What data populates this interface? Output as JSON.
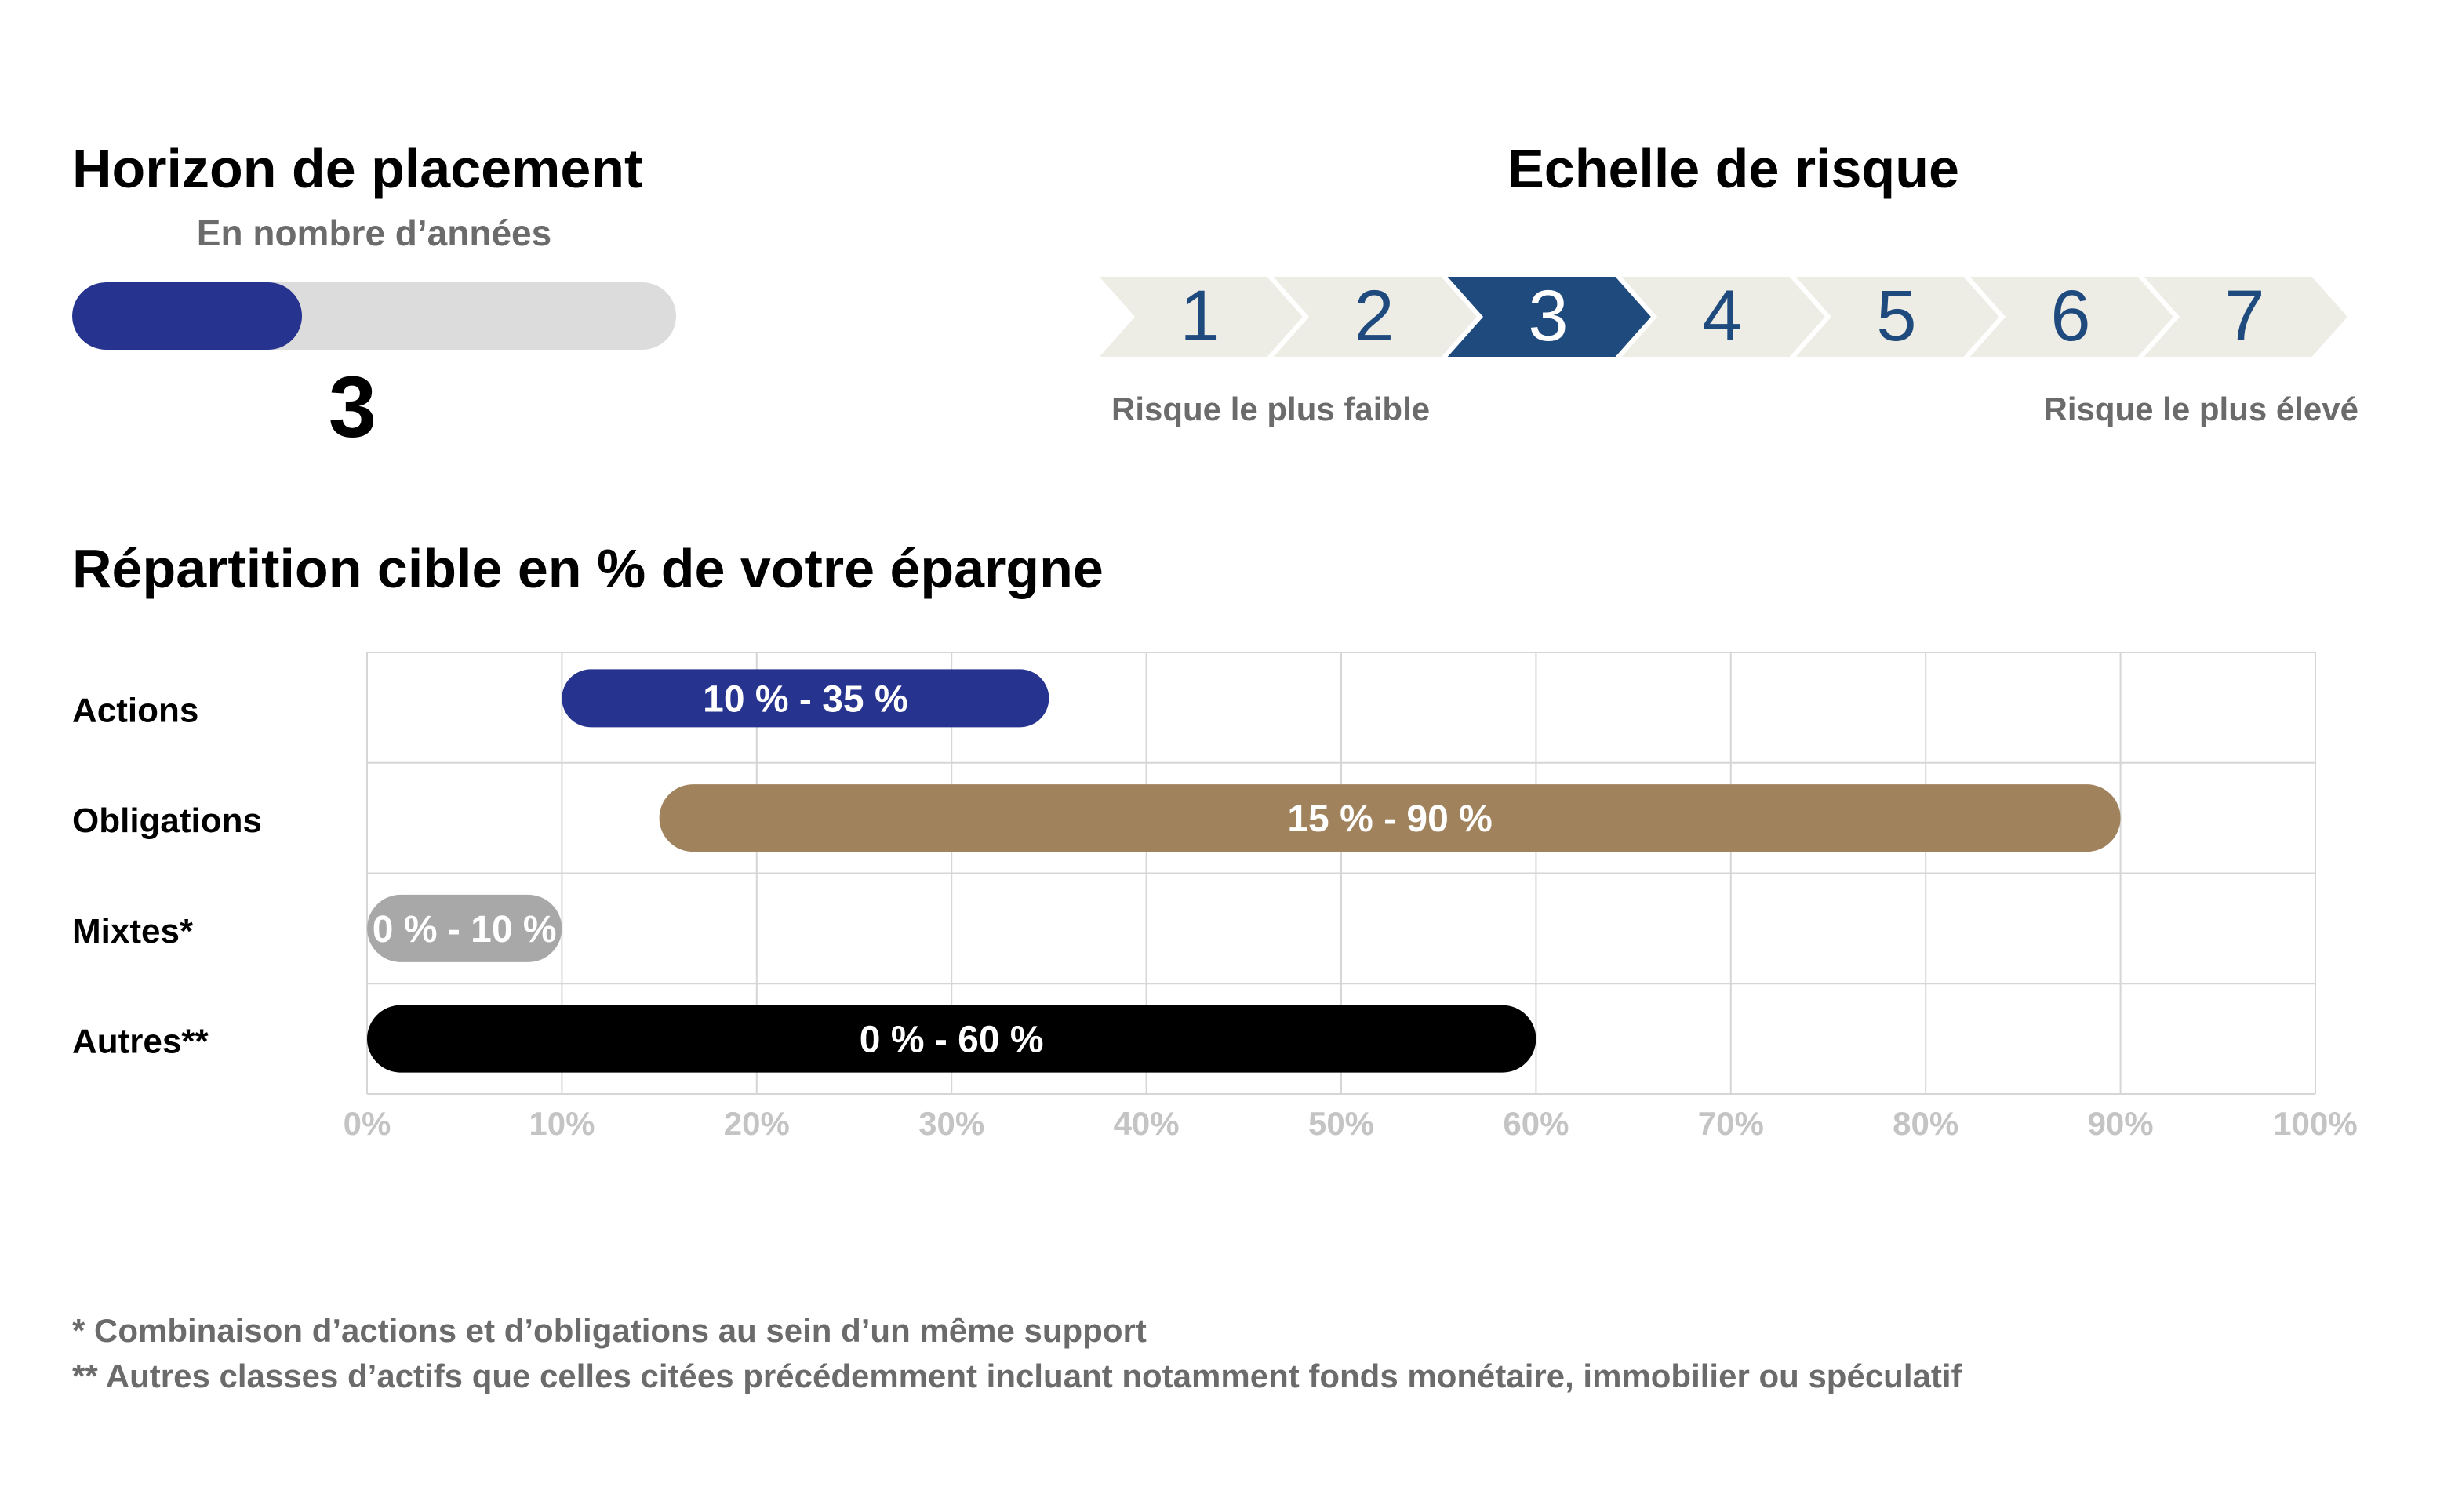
{
  "horizon": {
    "title": "Horizon de placement",
    "subtitle": "En nombre d’années",
    "value": "3",
    "fill_fraction": 0.38,
    "fill_color": "#26348f",
    "track_color": "#dcdcdc"
  },
  "risk_scale": {
    "title": "Echelle de risque",
    "levels": [
      "1",
      "2",
      "3",
      "4",
      "5",
      "6",
      "7"
    ],
    "selected": "3",
    "selected_color": "#1e4a7e",
    "step_color": "#eeede5",
    "number_color": "#1e4a7e",
    "label_low": "Risque le plus faible",
    "label_high": "Risque le plus élevé"
  },
  "allocation": {
    "title": "Répartition cible en % de votre épargne"
  },
  "chart_data": {
    "type": "bar",
    "orientation": "horizontal-range",
    "categories": [
      "Actions",
      "Obligations",
      "Mixtes*",
      "Autres**"
    ],
    "ranges": [
      {
        "category": "Actions",
        "min": 10,
        "max": 35,
        "label": "10 % - 35 %",
        "color": "#26348f"
      },
      {
        "category": "Obligations",
        "min": 15,
        "max": 90,
        "label": "15 % - 90 %",
        "color": "#a0825d"
      },
      {
        "category": "Mixtes*",
        "min": 0,
        "max": 10,
        "label": "0 % - 10 %",
        "color": "#a8a8a8"
      },
      {
        "category": "Autres**",
        "min": 0,
        "max": 60,
        "label": "0 % - 60 %",
        "color": "#000000"
      }
    ],
    "xticks": [
      "0%",
      "10%",
      "20%",
      "30%",
      "40%",
      "50%",
      "60%",
      "70%",
      "80%",
      "90%",
      "100%"
    ],
    "xlim": [
      0,
      100
    ],
    "grid": true
  },
  "footnotes": {
    "note1": "* Combinaison d’actions et d’obligations au sein d’un même support",
    "note2": "** Autres classes d’actifs que celles citées précédemment incluant notamment fonds monétaire, immobilier ou spéculatif"
  }
}
